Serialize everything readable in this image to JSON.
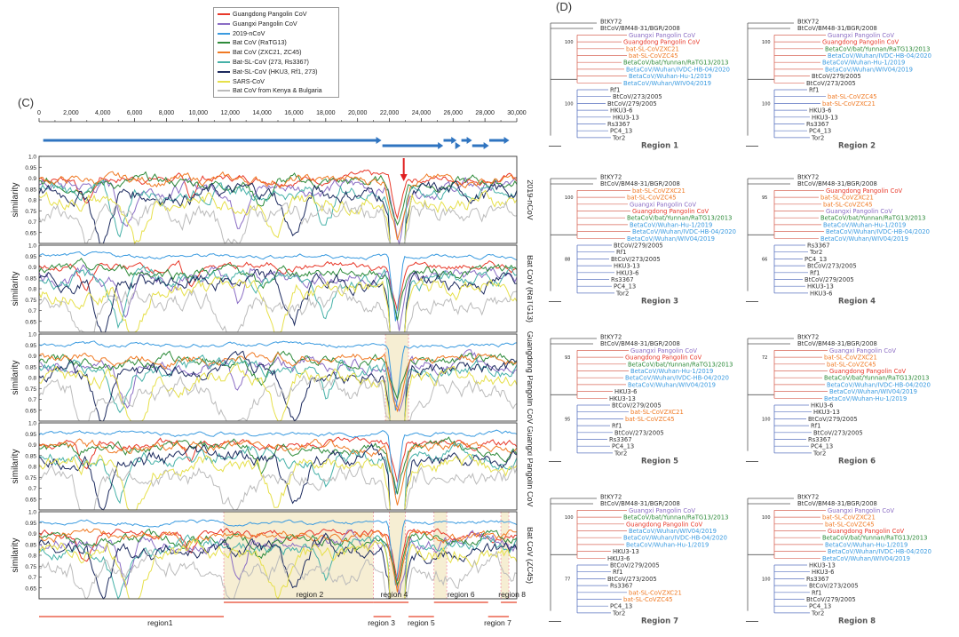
{
  "panel_c_label": "(C)",
  "panel_d_label": "(D)",
  "legend": [
    {
      "label": "Guangdong Pangolin CoV",
      "color": "#e8392a"
    },
    {
      "label": "Guangxi Pangolin CoV",
      "color": "#8a6cc4"
    },
    {
      "label": "2019-nCoV",
      "color": "#3b9be0"
    },
    {
      "label": "Bat CoV (RaTG13)",
      "color": "#2e8b3a"
    },
    {
      "label": "Bat CoV (ZXC21, ZC45)",
      "color": "#f07a24"
    },
    {
      "label": "Bat-SL-CoV (273, Rs3367)",
      "color": "#46b1a8"
    },
    {
      "label": "Bat-SL-CoV (HKU3, Rf1, 273)",
      "color": "#1c2a5e"
    },
    {
      "label": "SARS-CoV",
      "color": "#e6e04a"
    },
    {
      "label": "Bat CoV from Kenya & Bulgaria",
      "color": "#bbbbbb"
    }
  ],
  "chart_data": {
    "type": "line",
    "x_axis": {
      "range": [
        0,
        30000
      ],
      "ticks": [
        "0",
        "2,000",
        "4,000",
        "6,000",
        "8,000",
        "10,000",
        "12,000",
        "14,000",
        "16,000",
        "18,000",
        "20,000",
        "22,000",
        "24,000",
        "26,000",
        "28,000",
        "30,000"
      ]
    },
    "y_axis": {
      "label": "similarity",
      "range": [
        0.6,
        1.0
      ],
      "ticks": [
        "1.0",
        "0.95",
        "0.9",
        "0.85",
        "0.8",
        "0.75",
        "0.7",
        "0.65"
      ]
    },
    "panels": [
      {
        "reference": "2019-nCoV"
      },
      {
        "reference": "Bat CoV (RaTG13)"
      },
      {
        "reference": "Guangdong Pangolin CoV"
      },
      {
        "reference": "Guangxi Pangolin CoV"
      },
      {
        "reference": "Bat CoV (ZC45)"
      }
    ],
    "regions_top": [
      {
        "label": "region 2"
      },
      {
        "label": "region 4"
      },
      {
        "label": "region 6"
      },
      {
        "label": "region 8"
      }
    ],
    "regions_bottom": [
      {
        "label": "region1"
      },
      {
        "label": "region 3"
      },
      {
        "label": "region 5"
      },
      {
        "label": "region 7"
      }
    ]
  },
  "trees": [
    {
      "title": "Region 1",
      "taxa": [
        {
          "t": "BtKY72",
          "c": "#333"
        },
        {
          "t": "BtCoV/BM48-31/BGR/2008",
          "c": "#333"
        },
        {
          "t": "Guangxi Pangolin CoV",
          "c": "#8a6cc4"
        },
        {
          "t": "Guangdong Pangolin CoV",
          "c": "#e8392a"
        },
        {
          "t": "bat-SL-CoVZXC21",
          "c": "#f07a24"
        },
        {
          "t": "bat-SL-CoVZC45",
          "c": "#f07a24"
        },
        {
          "t": "BetaCoV/bat/Yunnan/RaTG13/2013",
          "c": "#2e8b3a"
        },
        {
          "t": "BetaCoV/Wuhan/IVDC-HB-04/2020",
          "c": "#3b9be0"
        },
        {
          "t": "BetaCoV/Wuhan-Hu-1/2019",
          "c": "#3b9be0"
        },
        {
          "t": "BetaCoV/Wuhan/WIV04/2019",
          "c": "#3b9be0"
        },
        {
          "t": "Rf1",
          "c": "#333"
        },
        {
          "t": "BtCoV/273/2005",
          "c": "#333"
        },
        {
          "t": "BtCoV/279/2005",
          "c": "#333"
        },
        {
          "t": "HKU3-6",
          "c": "#333"
        },
        {
          "t": "HKU3-13",
          "c": "#333"
        },
        {
          "t": "Rs3367",
          "c": "#333"
        },
        {
          "t": "PC4_13",
          "c": "#333"
        },
        {
          "t": "Tor2",
          "c": "#333"
        }
      ]
    },
    {
      "title": "Region 2",
      "taxa": [
        {
          "t": "BtKY72",
          "c": "#333"
        },
        {
          "t": "BtCoV/BM48-31/BGR/2008",
          "c": "#333"
        },
        {
          "t": "Guangxi Pangolin CoV",
          "c": "#8a6cc4"
        },
        {
          "t": "Guangdong Pangolin CoV",
          "c": "#e8392a"
        },
        {
          "t": "BetaCoV/bat/Yunnan/RaTG13/2013",
          "c": "#2e8b3a"
        },
        {
          "t": "BetaCoV/Wuhan/IVDC-HB-04/2020",
          "c": "#3b9be0"
        },
        {
          "t": "BetaCoV/Wuhan-Hu-1/2019",
          "c": "#3b9be0"
        },
        {
          "t": "BetaCoV/Wuhan/WIV04/2019",
          "c": "#3b9be0"
        },
        {
          "t": "BtCoV/279/2005",
          "c": "#333"
        },
        {
          "t": "BtCoV/273/2005",
          "c": "#333"
        },
        {
          "t": "Rf1",
          "c": "#333"
        },
        {
          "t": "bat-SL-CoVZC45",
          "c": "#f07a24"
        },
        {
          "t": "bat-SL-CoVZXC21",
          "c": "#f07a24"
        },
        {
          "t": "HKU3-6",
          "c": "#333"
        },
        {
          "t": "HKU3-13",
          "c": "#333"
        },
        {
          "t": "Rs3367",
          "c": "#333"
        },
        {
          "t": "PC4_13",
          "c": "#333"
        },
        {
          "t": "Tor2",
          "c": "#333"
        }
      ]
    },
    {
      "title": "Region 3",
      "taxa": [
        {
          "t": "BtKY72",
          "c": "#333"
        },
        {
          "t": "BtCoV/BM48-31/BGR/2008",
          "c": "#333"
        },
        {
          "t": "bat-SL-CoVZXC21",
          "c": "#f07a24"
        },
        {
          "t": "bat-SL-CoVZC45",
          "c": "#f07a24"
        },
        {
          "t": "Guangxi Pangolin CoV",
          "c": "#8a6cc4"
        },
        {
          "t": "Guangdong Pangolin CoV",
          "c": "#e8392a"
        },
        {
          "t": "BetaCoV/bat/Yunnan/RaTG13/2013",
          "c": "#2e8b3a"
        },
        {
          "t": "BetaCoV/Wuhan-Hu-1/2019",
          "c": "#3b9be0"
        },
        {
          "t": "BetaCoV/Wuhan/IVDC-HB-04/2020",
          "c": "#3b9be0"
        },
        {
          "t": "BetaCoV/Wuhan/WIV04/2019",
          "c": "#3b9be0"
        },
        {
          "t": "BtCoV/279/2005",
          "c": "#333"
        },
        {
          "t": "Rf1",
          "c": "#333"
        },
        {
          "t": "BtCoV/273/2005",
          "c": "#333"
        },
        {
          "t": "HKU3-13",
          "c": "#333"
        },
        {
          "t": "HKU3-6",
          "c": "#333"
        },
        {
          "t": "Rs3367",
          "c": "#333"
        },
        {
          "t": "PC4_13",
          "c": "#333"
        },
        {
          "t": "Tor2",
          "c": "#333"
        }
      ]
    },
    {
      "title": "Region 4",
      "taxa": [
        {
          "t": "BtKY72",
          "c": "#333"
        },
        {
          "t": "BtCoV/BM48-31/BGR/2008",
          "c": "#333"
        },
        {
          "t": "Guangdong Pangolin CoV",
          "c": "#e8392a"
        },
        {
          "t": "bat-SL-CoVZXC21",
          "c": "#f07a24"
        },
        {
          "t": "bat-SL-CoVZC45",
          "c": "#f07a24"
        },
        {
          "t": "Guangxi Pangolin CoV",
          "c": "#8a6cc4"
        },
        {
          "t": "BetaCoV/bat/Yunnan/RaTG13/2013",
          "c": "#2e8b3a"
        },
        {
          "t": "BetaCoV/Wuhan-Hu-1/2019",
          "c": "#3b9be0"
        },
        {
          "t": "BetaCoV/Wuhan/IVDC-HB-04/2020",
          "c": "#3b9be0"
        },
        {
          "t": "BetaCoV/Wuhan/WIV04/2019",
          "c": "#3b9be0"
        },
        {
          "t": "Rs3367",
          "c": "#333"
        },
        {
          "t": "Tor2",
          "c": "#333"
        },
        {
          "t": "PC4_13",
          "c": "#333"
        },
        {
          "t": "BtCoV/273/2005",
          "c": "#333"
        },
        {
          "t": "Rf1",
          "c": "#333"
        },
        {
          "t": "BtCoV/279/2005",
          "c": "#333"
        },
        {
          "t": "HKU3-13",
          "c": "#333"
        },
        {
          "t": "HKU3-6",
          "c": "#333"
        }
      ]
    },
    {
      "title": "Region 5",
      "taxa": [
        {
          "t": "BtKY72",
          "c": "#333"
        },
        {
          "t": "BtCoV/BM48-31/BGR/2008",
          "c": "#333"
        },
        {
          "t": "Guangxi Pangolin CoV",
          "c": "#8a6cc4"
        },
        {
          "t": "Guangdong Pangolin CoV",
          "c": "#e8392a"
        },
        {
          "t": "BetaCoV/bat/Yunnan/RaTG13/2013",
          "c": "#2e8b3a"
        },
        {
          "t": "BetaCoV/Wuhan-Hu-1/2019",
          "c": "#3b9be0"
        },
        {
          "t": "BetaCoV/Wuhan/IVDC-HB-04/2020",
          "c": "#3b9be0"
        },
        {
          "t": "BetaCoV/Wuhan/WIV04/2019",
          "c": "#3b9be0"
        },
        {
          "t": "HKU3-6",
          "c": "#333"
        },
        {
          "t": "HKU3-13",
          "c": "#333"
        },
        {
          "t": "BtCoV/279/2005",
          "c": "#333"
        },
        {
          "t": "bat-SL-CoVZXC21",
          "c": "#f07a24"
        },
        {
          "t": "bat-SL-CoVZC45",
          "c": "#f07a24"
        },
        {
          "t": "Rf1",
          "c": "#333"
        },
        {
          "t": "BtCoV/273/2005",
          "c": "#333"
        },
        {
          "t": "Rs3367",
          "c": "#333"
        },
        {
          "t": "PC4_13",
          "c": "#333"
        },
        {
          "t": "Tor2",
          "c": "#333"
        }
      ]
    },
    {
      "title": "Region 6",
      "taxa": [
        {
          "t": "BtKY72",
          "c": "#333"
        },
        {
          "t": "BtCoV/BM48-31/BGR/2008",
          "c": "#333"
        },
        {
          "t": "Guangxi Pangolin CoV",
          "c": "#8a6cc4"
        },
        {
          "t": "bat-SL-CoVZXC21",
          "c": "#f07a24"
        },
        {
          "t": "bat-SL-CoVZC45",
          "c": "#f07a24"
        },
        {
          "t": "Guangdong Pangolin CoV",
          "c": "#e8392a"
        },
        {
          "t": "BetaCoV/bat/Yunnan/RaTG13/2013",
          "c": "#2e8b3a"
        },
        {
          "t": "BetaCoV/Wuhan/IVDC-HB-04/2020",
          "c": "#3b9be0"
        },
        {
          "t": "BetaCoV/Wuhan/WIV04/2019",
          "c": "#3b9be0"
        },
        {
          "t": "BetaCoV/Wuhan-Hu-1/2019",
          "c": "#3b9be0"
        },
        {
          "t": "HKU3-6",
          "c": "#333"
        },
        {
          "t": "HKU3-13",
          "c": "#333"
        },
        {
          "t": "BtCoV/279/2005",
          "c": "#333"
        },
        {
          "t": "Rf1",
          "c": "#333"
        },
        {
          "t": "BtCoV/273/2005",
          "c": "#333"
        },
        {
          "t": "Rs3367",
          "c": "#333"
        },
        {
          "t": "PC4_13",
          "c": "#333"
        },
        {
          "t": "Tor2",
          "c": "#333"
        }
      ]
    },
    {
      "title": "Region 7",
      "taxa": [
        {
          "t": "BtKY72",
          "c": "#333"
        },
        {
          "t": "BtCoV/BM48-31/BGR/2008",
          "c": "#333"
        },
        {
          "t": "Guangxi Pangolin CoV",
          "c": "#8a6cc4"
        },
        {
          "t": "BetaCoV/bat/Yunnan/RaTG13/2013",
          "c": "#2e8b3a"
        },
        {
          "t": "Guangdong Pangolin CoV",
          "c": "#e8392a"
        },
        {
          "t": "BetaCoV/Wuhan/WIV04/2019",
          "c": "#3b9be0"
        },
        {
          "t": "BetaCoV/Wuhan/IVDC-HB-04/2020",
          "c": "#3b9be0"
        },
        {
          "t": "BetaCoV/Wuhan-Hu-1/2019",
          "c": "#3b9be0"
        },
        {
          "t": "HKU3-13",
          "c": "#333"
        },
        {
          "t": "HKU3-6",
          "c": "#333"
        },
        {
          "t": "BtCoV/279/2005",
          "c": "#333"
        },
        {
          "t": "Rf1",
          "c": "#333"
        },
        {
          "t": "BtCoV/273/2005",
          "c": "#333"
        },
        {
          "t": "Rs3367",
          "c": "#333"
        },
        {
          "t": "bat-SL-CoVZXC21",
          "c": "#f07a24"
        },
        {
          "t": "bat-SL-CoVZC45",
          "c": "#f07a24"
        },
        {
          "t": "PC4_13",
          "c": "#333"
        },
        {
          "t": "Tor2",
          "c": "#333"
        }
      ]
    },
    {
      "title": "Region 8",
      "taxa": [
        {
          "t": "BtKY72",
          "c": "#333"
        },
        {
          "t": "BtCoV/BM48-31/BGR/2008",
          "c": "#333"
        },
        {
          "t": "Guangxi Pangolin CoV",
          "c": "#8a6cc4"
        },
        {
          "t": "bat-SL-CoVZXC21",
          "c": "#f07a24"
        },
        {
          "t": "bat-SL-CoVZC45",
          "c": "#f07a24"
        },
        {
          "t": "Guangdong Pangolin CoV",
          "c": "#e8392a"
        },
        {
          "t": "BetaCoV/bat/Yunnan/RaTG13/2013",
          "c": "#2e8b3a"
        },
        {
          "t": "BetaCoV/Wuhan-Hu-1/2019",
          "c": "#3b9be0"
        },
        {
          "t": "BetaCoV/Wuhan/IVDC-HB-04/2020",
          "c": "#3b9be0"
        },
        {
          "t": "BetaCoV/Wuhan/WIV04/2019",
          "c": "#3b9be0"
        },
        {
          "t": "HKU3-13",
          "c": "#333"
        },
        {
          "t": "HKU3-6",
          "c": "#333"
        },
        {
          "t": "Rs3367",
          "c": "#333"
        },
        {
          "t": "BtCoV/273/2005",
          "c": "#333"
        },
        {
          "t": "Rf1",
          "c": "#333"
        },
        {
          "t": "BtCoV/279/2005",
          "c": "#333"
        },
        {
          "t": "PC4_13",
          "c": "#333"
        },
        {
          "t": "Tor2",
          "c": "#333"
        }
      ]
    }
  ],
  "bootstraps": [
    "100",
    "100",
    "100",
    "95",
    "93",
    "72",
    "100",
    "100",
    "88",
    "66",
    "95",
    "100",
    "77",
    "100",
    "76",
    "99",
    "99",
    "100",
    "72",
    "100"
  ]
}
